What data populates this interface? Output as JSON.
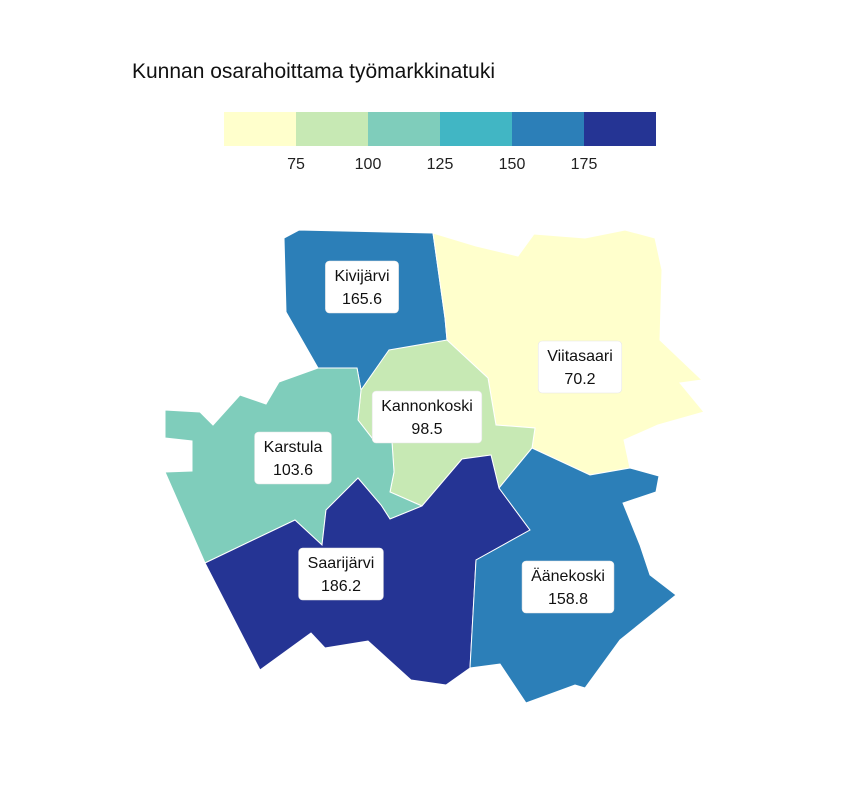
{
  "chart_data": {
    "type": "choropleth",
    "title": "Kunnan osarahoittama työmarkkinatuki",
    "legend": {
      "placement": "top",
      "breaks": [
        75,
        100,
        125,
        150,
        175
      ],
      "tick_labels": [
        "75",
        "100",
        "125",
        "150",
        "175"
      ],
      "colors": [
        "#ffffcc",
        "#c7e9b4",
        "#7fcdbb",
        "#41b6c4",
        "#2c7fb8",
        "#253494"
      ]
    },
    "regions": [
      {
        "name": "Kivijärvi",
        "value": 165.6,
        "value_label": "165.6"
      },
      {
        "name": "Viitasaari",
        "value": 70.2,
        "value_label": "70.2"
      },
      {
        "name": "Kannonkoski",
        "value": 98.5,
        "value_label": "98.5"
      },
      {
        "name": "Karstula",
        "value": 103.6,
        "value_label": "103.6"
      },
      {
        "name": "Saarijärvi",
        "value": 186.2,
        "value_label": "186.2"
      },
      {
        "name": "Äänekoski",
        "value": 158.8,
        "value_label": "158.8"
      }
    ]
  }
}
